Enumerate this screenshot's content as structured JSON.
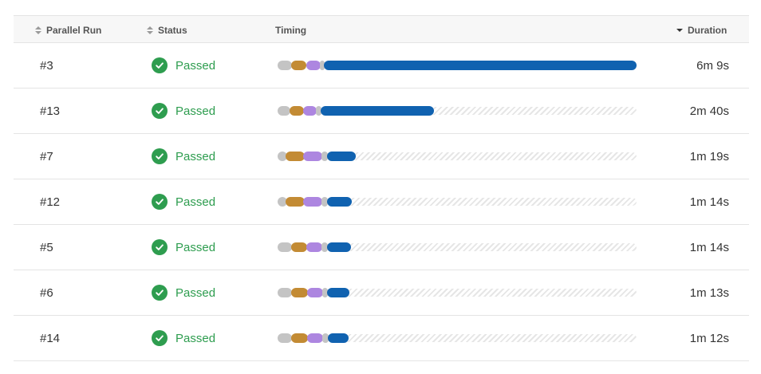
{
  "columns": {
    "run": "Parallel Run",
    "status": "Status",
    "timing": "Timing",
    "duration": "Duration"
  },
  "colors": {
    "setup": "#c4c4c4",
    "stage2": "#c38b34",
    "stage3": "#ad86e0",
    "stage4": "#c4c4c4",
    "run": "#1062b0",
    "passed": "#2e9d4f"
  },
  "rows": [
    {
      "run": "#3",
      "status": "Passed",
      "duration": "6m 9s"
    },
    {
      "run": "#13",
      "status": "Passed",
      "duration": "2m 40s"
    },
    {
      "run": "#7",
      "status": "Passed",
      "duration": "1m 19s"
    },
    {
      "run": "#12",
      "status": "Passed",
      "duration": "1m 14s"
    },
    {
      "run": "#5",
      "status": "Passed",
      "duration": "1m 14s"
    },
    {
      "run": "#6",
      "status": "Passed",
      "duration": "1m 13s"
    },
    {
      "run": "#14",
      "status": "Passed",
      "duration": "1m 12s"
    }
  ]
}
